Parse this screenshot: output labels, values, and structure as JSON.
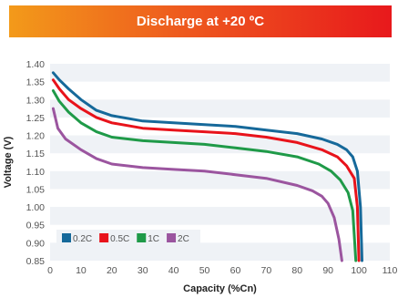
{
  "chart_data": {
    "type": "line",
    "title": "Discharge at +20 ºC",
    "xlabel": "Capacity (%Cn)",
    "ylabel": "Voltage (V)",
    "xlim": [
      0,
      110
    ],
    "ylim": [
      0.85,
      1.4
    ],
    "x_ticks": [
      0,
      10,
      20,
      30,
      40,
      50,
      60,
      70,
      80,
      90,
      100,
      110
    ],
    "y_ticks": [
      0.85,
      0.9,
      0.95,
      1.0,
      1.05,
      1.1,
      1.15,
      1.2,
      1.25,
      1.3,
      1.35,
      1.4
    ],
    "grid": "horizontal bands",
    "legend_position": "bottom-left",
    "series": [
      {
        "name": "0.2C",
        "color": "#16699a",
        "points": [
          [
            1,
            1.375
          ],
          [
            3,
            1.355
          ],
          [
            6,
            1.33
          ],
          [
            10,
            1.3
          ],
          [
            15,
            1.27
          ],
          [
            20,
            1.255
          ],
          [
            30,
            1.24
          ],
          [
            40,
            1.235
          ],
          [
            50,
            1.23
          ],
          [
            60,
            1.225
          ],
          [
            70,
            1.215
          ],
          [
            80,
            1.205
          ],
          [
            88,
            1.19
          ],
          [
            93,
            1.175
          ],
          [
            96,
            1.16
          ],
          [
            98,
            1.14
          ],
          [
            99.5,
            1.1
          ],
          [
            100.5,
            1.0
          ],
          [
            101,
            0.85
          ]
        ]
      },
      {
        "name": "0.5C",
        "color": "#e8131b",
        "points": [
          [
            1,
            1.355
          ],
          [
            3,
            1.33
          ],
          [
            6,
            1.3
          ],
          [
            10,
            1.275
          ],
          [
            15,
            1.25
          ],
          [
            20,
            1.235
          ],
          [
            30,
            1.22
          ],
          [
            40,
            1.215
          ],
          [
            50,
            1.21
          ],
          [
            60,
            1.205
          ],
          [
            70,
            1.195
          ],
          [
            80,
            1.18
          ],
          [
            88,
            1.16
          ],
          [
            93,
            1.14
          ],
          [
            96,
            1.115
          ],
          [
            98.5,
            1.08
          ],
          [
            99.5,
            1.0
          ],
          [
            100,
            0.85
          ]
        ]
      },
      {
        "name": "1C",
        "color": "#1f9a48",
        "points": [
          [
            1,
            1.325
          ],
          [
            3,
            1.295
          ],
          [
            6,
            1.265
          ],
          [
            10,
            1.235
          ],
          [
            15,
            1.21
          ],
          [
            20,
            1.195
          ],
          [
            30,
            1.185
          ],
          [
            40,
            1.18
          ],
          [
            50,
            1.175
          ],
          [
            60,
            1.165
          ],
          [
            70,
            1.155
          ],
          [
            80,
            1.14
          ],
          [
            87,
            1.12
          ],
          [
            91,
            1.1
          ],
          [
            94,
            1.075
          ],
          [
            96.5,
            1.04
          ],
          [
            98,
            0.99
          ],
          [
            99,
            0.85
          ]
        ]
      },
      {
        "name": "2C",
        "color": "#9b559f",
        "points": [
          [
            1,
            1.275
          ],
          [
            2.5,
            1.22
          ],
          [
            5,
            1.19
          ],
          [
            10,
            1.16
          ],
          [
            15,
            1.135
          ],
          [
            20,
            1.12
          ],
          [
            30,
            1.11
          ],
          [
            40,
            1.105
          ],
          [
            50,
            1.1
          ],
          [
            60,
            1.09
          ],
          [
            70,
            1.08
          ],
          [
            80,
            1.06
          ],
          [
            85,
            1.045
          ],
          [
            88,
            1.03
          ],
          [
            90,
            1.01
          ],
          [
            92,
            0.97
          ],
          [
            93.5,
            0.91
          ],
          [
            94.5,
            0.85
          ]
        ]
      }
    ]
  }
}
